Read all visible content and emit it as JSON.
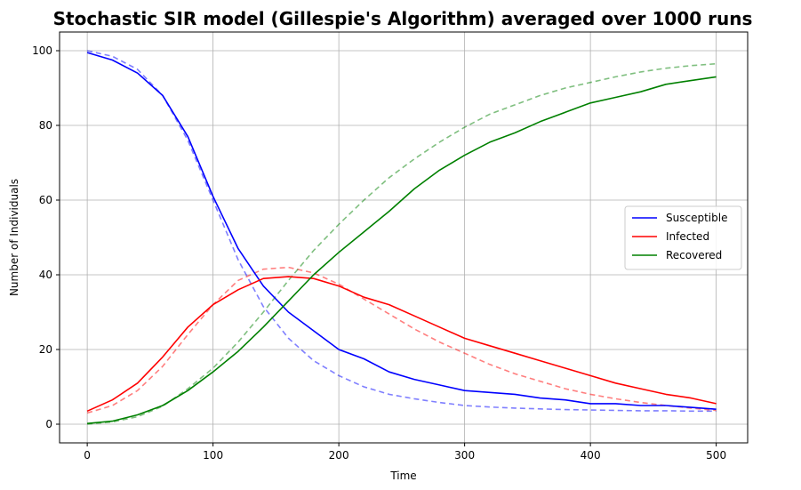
{
  "chart_data": {
    "type": "line",
    "title": "Stochastic SIR model (Gillespie's Algorithm) averaged over 1000 runs",
    "xlabel": "Time",
    "ylabel": "Number of Individuals",
    "xlim": [
      -22,
      525
    ],
    "ylim": [
      -5,
      105
    ],
    "xticks": [
      0,
      100,
      200,
      300,
      400,
      500
    ],
    "yticks": [
      0,
      20,
      40,
      60,
      80,
      100
    ],
    "grid": true,
    "legend_position": "center-right",
    "series": [
      {
        "name": "Susceptible",
        "style": "solid",
        "color": "#0000ff",
        "x": [
          0,
          20,
          40,
          60,
          80,
          100,
          120,
          140,
          160,
          180,
          200,
          220,
          240,
          260,
          280,
          300,
          320,
          340,
          360,
          380,
          400,
          420,
          440,
          460,
          480,
          500
        ],
        "y": [
          99.5,
          97.5,
          94,
          88,
          77,
          61,
          47,
          37,
          30,
          25,
          20,
          17.5,
          14,
          12,
          10.5,
          9,
          8.5,
          8,
          7,
          6.5,
          5.5,
          5.5,
          5,
          5,
          4.5,
          4
        ]
      },
      {
        "name": "Infected",
        "style": "solid",
        "color": "#ff0000",
        "x": [
          0,
          20,
          40,
          60,
          80,
          100,
          120,
          140,
          160,
          180,
          200,
          220,
          240,
          260,
          280,
          300,
          320,
          340,
          360,
          380,
          400,
          420,
          440,
          460,
          480,
          500
        ],
        "y": [
          3.5,
          6.5,
          11,
          18,
          26,
          32,
          36,
          39,
          39.5,
          39,
          37,
          34,
          32,
          29,
          26,
          23,
          21,
          19,
          17,
          15,
          13,
          11,
          9.5,
          8,
          7,
          5.5
        ]
      },
      {
        "name": "Recovered",
        "style": "solid",
        "color": "#008000",
        "x": [
          0,
          20,
          40,
          60,
          80,
          100,
          120,
          140,
          160,
          180,
          200,
          220,
          240,
          260,
          280,
          300,
          320,
          340,
          360,
          380,
          400,
          420,
          440,
          460,
          480,
          500
        ],
        "y": [
          0.2,
          0.8,
          2.5,
          5,
          9,
          14,
          19.5,
          26,
          33,
          40,
          46,
          51.5,
          57,
          63,
          68,
          72,
          75.5,
          78,
          81,
          83.5,
          86,
          87.5,
          89,
          91,
          92,
          93
        ]
      },
      {
        "style": "dashed",
        "color": "#0000ff",
        "x": [
          0,
          20,
          40,
          60,
          80,
          100,
          120,
          140,
          160,
          180,
          200,
          220,
          240,
          260,
          280,
          300,
          320,
          340,
          360,
          380,
          400,
          420,
          440,
          460,
          480,
          500
        ],
        "y": [
          100,
          98.5,
          95,
          88,
          76,
          60,
          44,
          31.5,
          23,
          17,
          13,
          10,
          8,
          6.8,
          5.8,
          5,
          4.6,
          4.3,
          4.1,
          3.9,
          3.8,
          3.7,
          3.6,
          3.6,
          3.5,
          3.5
        ]
      },
      {
        "style": "dashed",
        "color": "#ff0000",
        "x": [
          0,
          20,
          40,
          60,
          80,
          100,
          120,
          140,
          160,
          180,
          200,
          220,
          240,
          260,
          280,
          300,
          320,
          340,
          360,
          380,
          400,
          420,
          440,
          460,
          480,
          500
        ],
        "y": [
          3,
          5,
          9,
          15.5,
          24,
          32,
          38.5,
          41.5,
          42,
          40.5,
          37.5,
          33.5,
          29.5,
          25.5,
          22,
          19,
          16,
          13.5,
          11.5,
          9.5,
          8,
          6.8,
          5.8,
          5,
          4.3,
          3.7
        ]
      },
      {
        "style": "dashed",
        "color": "#008000",
        "x": [
          0,
          20,
          40,
          60,
          80,
          100,
          120,
          140,
          160,
          180,
          200,
          220,
          240,
          260,
          280,
          300,
          320,
          340,
          360,
          380,
          400,
          420,
          440,
          460,
          480,
          500
        ],
        "y": [
          0,
          0.6,
          2,
          4.8,
          9.5,
          15,
          22,
          30,
          38.5,
          46.5,
          53.5,
          60,
          66,
          71,
          75.5,
          79.5,
          83,
          85.5,
          88,
          90,
          91.5,
          93,
          94.3,
          95.3,
          96,
          96.5
        ]
      }
    ]
  }
}
